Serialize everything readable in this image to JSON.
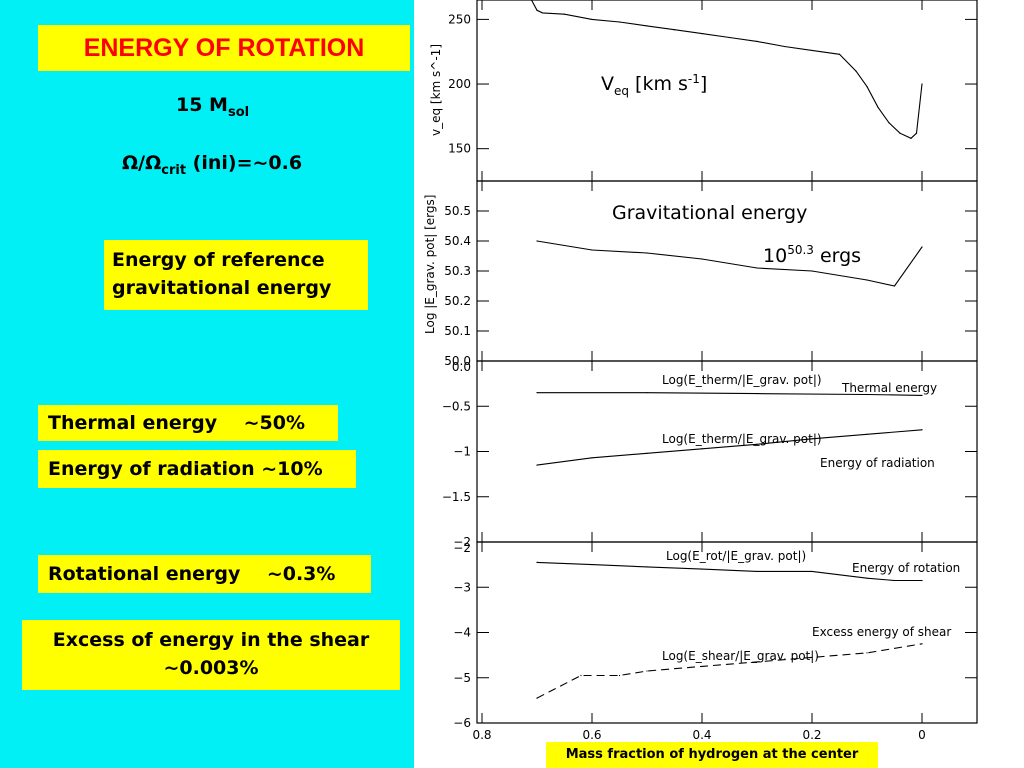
{
  "slide": {
    "title": "ENERGY OF ROTATION",
    "mass_label": "15 M",
    "mass_sub": "sol",
    "omega_label": "Ω/Ω",
    "omega_sub": "crit",
    "omega_value": " (ini)=~0.6",
    "reference_box_line1": "Energy of reference",
    "reference_box_line2": "gravitational energy",
    "thermal_box": "Thermal energy    ~50%",
    "radiation_box": "Energy of radiation ~10%",
    "rotational_box": "Rotational energy    ~0.3%",
    "shear_box_line1": "Excess of energy in the shear",
    "shear_box_line2": "~0.003%",
    "x_axis_caption": "Mass fraction of hydrogen at the center"
  },
  "colors": {
    "left_background": "#00f0f6",
    "box_background": "#ffff00",
    "title_color": "#ff0000"
  },
  "chart_data": [
    {
      "type": "line",
      "panel": "veq",
      "ylabel": "v_eq [km s^-1]",
      "annotation": "V_eq [km s^-1]",
      "annotation_main": "V",
      "annotation_sub": "eq",
      "annotation_rest": " [km s",
      "annotation_sup": "-1",
      "annotation_end": "]",
      "ylim": [
        125,
        265
      ],
      "yticks": [
        150,
        200,
        250
      ],
      "ytick_labels": [
        "150",
        "200",
        "250"
      ],
      "xlim": [
        0.8,
        -0.1
      ],
      "series": [
        {
          "x": [
            0.71,
            0.7,
            0.69,
            0.65,
            0.6,
            0.55,
            0.5,
            0.45,
            0.4,
            0.35,
            0.3,
            0.25,
            0.2,
            0.15,
            0.12,
            0.1,
            0.08,
            0.06,
            0.04,
            0.02,
            0.01,
            0.0
          ],
          "y": [
            265,
            257,
            255,
            254,
            250,
            248,
            245,
            242,
            239,
            236,
            233,
            229,
            226,
            223,
            210,
            198,
            182,
            170,
            162,
            158,
            162,
            200
          ]
        }
      ]
    },
    {
      "type": "line",
      "panel": "egrav",
      "ylabel": "Log |E_grav. pot| [ergs]",
      "annotation": "Gravitational energy",
      "annotation2": "10^50.3 ergs",
      "annotation2_base": "10",
      "annotation2_sup": "50.3",
      "annotation2_rest": " ergs",
      "ylim": [
        50.0,
        50.6
      ],
      "yticks": [
        50.0,
        50.1,
        50.2,
        50.3,
        50.4,
        50.5
      ],
      "ytick_labels": [
        "50.0",
        "50.1",
        "50.2",
        "50.3",
        "50.4",
        "50.5"
      ],
      "xlim": [
        0.8,
        -0.1
      ],
      "series": [
        {
          "x": [
            0.7,
            0.6,
            0.5,
            0.4,
            0.3,
            0.2,
            0.1,
            0.05,
            0.0
          ],
          "y": [
            50.4,
            50.37,
            50.36,
            50.34,
            50.31,
            50.3,
            50.27,
            50.25,
            50.38
          ]
        }
      ]
    },
    {
      "type": "line",
      "panel": "thermal-radiation",
      "ylim": [
        -2.0,
        0.0
      ],
      "yticks": [
        -2,
        -1.5,
        -1,
        -0.5,
        0.0
      ],
      "ytick_labels": [
        "−2",
        "−1.5",
        "−1",
        "−0.5",
        "0.0"
      ],
      "xlim": [
        0.8,
        -0.1
      ],
      "series": [
        {
          "name": "Log(E_therm/|E_grav. pot|)",
          "label": "Thermal energy",
          "x": [
            0.7,
            0.5,
            0.3,
            0.1,
            0.0
          ],
          "y": [
            -0.35,
            -0.35,
            -0.36,
            -0.37,
            -0.38
          ]
        },
        {
          "name": "Log(E_therm/|E_grav. pot|)",
          "label": "Energy of radiation",
          "x": [
            0.7,
            0.6,
            0.5,
            0.4,
            0.3,
            0.2,
            0.1,
            0.0
          ],
          "y": [
            -1.15,
            -1.07,
            -1.02,
            -0.97,
            -0.92,
            -0.86,
            -0.81,
            -0.76
          ]
        }
      ]
    },
    {
      "type": "line",
      "panel": "rotation-shear",
      "xlabel": "Mass fraction of hydrogen at the center",
      "ylim": [
        -6,
        -2
      ],
      "yticks": [
        -6,
        -5,
        -4,
        -3,
        -2
      ],
      "ytick_labels": [
        "−6",
        "−5",
        "−4",
        "−3",
        "−2"
      ],
      "xlim": [
        0.8,
        -0.1
      ],
      "xticks": [
        0.8,
        0.6,
        0.4,
        0.2,
        0.0
      ],
      "xtick_labels": [
        "0.8",
        "0.6",
        "0.4",
        "0.2",
        "0"
      ],
      "series": [
        {
          "name": "Log(E_rot/|E_grav. pot|)",
          "label": "Energy of rotation",
          "x": [
            0.7,
            0.6,
            0.5,
            0.4,
            0.3,
            0.2,
            0.1,
            0.05,
            0.0
          ],
          "y": [
            -2.45,
            -2.5,
            -2.55,
            -2.6,
            -2.65,
            -2.65,
            -2.8,
            -2.85,
            -2.85
          ]
        },
        {
          "name": "Log(E_shear/|E_grav. pot|)",
          "label": "Excess energy of shear",
          "dashed": true,
          "x": [
            0.7,
            0.62,
            0.55,
            0.5,
            0.4,
            0.3,
            0.2,
            0.1,
            0.0
          ],
          "y": [
            -5.45,
            -4.95,
            -4.95,
            -4.85,
            -4.75,
            -4.65,
            -4.55,
            -4.45,
            -4.25
          ]
        }
      ]
    }
  ]
}
